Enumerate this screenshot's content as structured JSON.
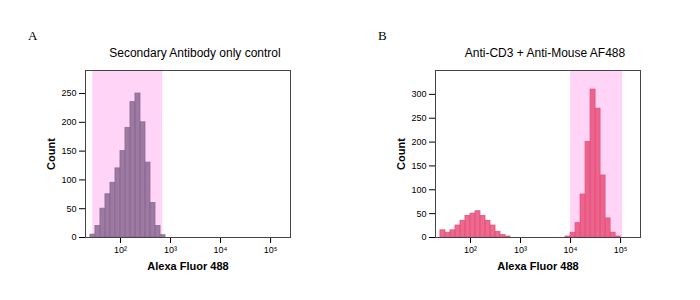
{
  "chart_data": [
    {
      "type": "histogram",
      "panel_label": "A",
      "title": "Secondary Antibody only control",
      "x_label": "Alexa Fluor 488",
      "y_label": "Count",
      "log": "x",
      "color": "#8b6a93",
      "bins": [
        25.1,
        31.6,
        39.8,
        50.1,
        63.1,
        79.4,
        100,
        125.9,
        158.5,
        199.5,
        251.2,
        316.2,
        398.1,
        501.2,
        631,
        794.3,
        1000,
        1258.9,
        1584.9,
        1995.3,
        2511.9,
        3162.3,
        3981.1,
        5011.9,
        6309.6,
        7943.3,
        10000,
        12589,
        15849,
        19953,
        25119,
        31623,
        39811,
        50119,
        63096,
        79433,
        100000,
        125893,
        158489,
        199526,
        251189
      ],
      "counts": [
        5,
        20,
        50,
        75,
        95,
        120,
        150,
        190,
        235,
        250,
        200,
        130,
        60,
        20,
        4,
        0,
        0,
        0,
        0,
        0,
        0,
        0,
        0,
        0,
        0,
        0,
        0,
        0,
        0,
        0,
        0,
        0,
        0,
        0,
        0,
        0,
        0,
        0,
        0,
        0
      ],
      "gate": [
        28,
        700
      ],
      "xlim": [
        20,
        250000
      ],
      "ylim": [
        0,
        290
      ],
      "xticks": [
        {
          "value": 100,
          "label": "10²"
        },
        {
          "value": 1000,
          "label": "10³"
        },
        {
          "value": 10000,
          "label": "10⁴"
        },
        {
          "value": 100000,
          "label": "10⁵"
        }
      ],
      "yticks": [
        0,
        50,
        100,
        150,
        200,
        250
      ]
    },
    {
      "type": "histogram",
      "panel_label": "B",
      "title": "Anti-CD3 + Anti-Mouse AF488",
      "x_label": "Alexa Fluor 488",
      "y_label": "Count",
      "log": "x",
      "color": "#e8507a",
      "bins": [
        25.1,
        31.6,
        39.8,
        50.1,
        63.1,
        79.4,
        100,
        125.9,
        158.5,
        199.5,
        251.2,
        316.2,
        398.1,
        501.2,
        631,
        794.3,
        1000,
        1258.9,
        1584.9,
        1995.3,
        2511.9,
        3162.3,
        3981.1,
        5011.9,
        6309.6,
        7943.3,
        10000,
        12589,
        15849,
        19953,
        25119,
        31623,
        39811,
        50119,
        63096,
        79433,
        100000,
        125893,
        158489,
        199526,
        251189
      ],
      "counts": [
        15,
        10,
        15,
        25,
        35,
        45,
        50,
        55,
        45,
        35,
        25,
        12,
        5,
        2,
        0,
        0,
        0,
        0,
        0,
        0,
        0,
        0,
        0,
        0,
        0,
        2,
        10,
        30,
        90,
        200,
        310,
        270,
        130,
        40,
        10,
        2,
        0,
        0,
        0,
        0
      ],
      "gate": [
        10000,
        110000
      ],
      "xlim": [
        20,
        250000
      ],
      "ylim": [
        0,
        350
      ],
      "xticks": [
        {
          "value": 100,
          "label": "10²"
        },
        {
          "value": 1000,
          "label": "10³"
        },
        {
          "value": 10000,
          "label": "10⁴"
        },
        {
          "value": 100000,
          "label": "10⁵"
        }
      ],
      "yticks": [
        0,
        50,
        100,
        150,
        200,
        250,
        300
      ]
    }
  ]
}
